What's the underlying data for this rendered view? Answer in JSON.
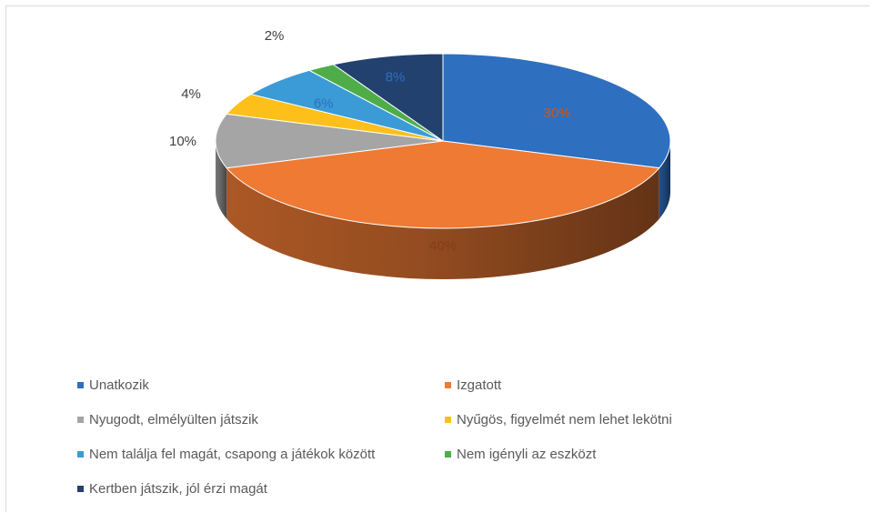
{
  "chart_data": {
    "type": "pie",
    "title": "",
    "categories": [
      "Unatkozik",
      "Izgatott",
      "Nyugodt, elmélyülten játszik",
      "Nyűgös, figyelmét nem lehet lekötni",
      "Nem találja fel magát, csapong a játékok között",
      "Nem igényli az eszközt",
      "Kertben játszik, jól érzi magát"
    ],
    "values": [
      30,
      40,
      10,
      4,
      6,
      2,
      8
    ],
    "labels": [
      "30%",
      "40%",
      "10%",
      "4%",
      "6%",
      "2%",
      "8%"
    ],
    "colors": [
      "#2e6fc0",
      "#ee7a34",
      "#a5a5a5",
      "#fdbf1a",
      "#3b9bd7",
      "#4ead49",
      "#23416f"
    ],
    "legend_position": "bottom",
    "style": "3d-pie"
  }
}
